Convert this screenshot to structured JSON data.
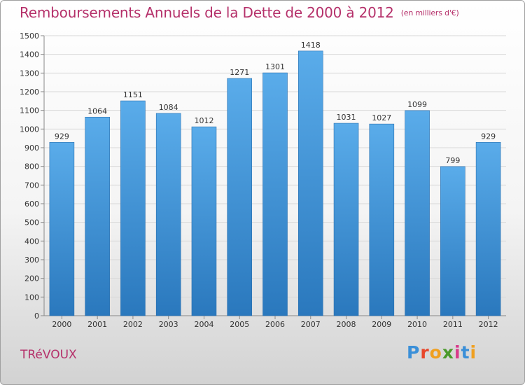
{
  "title": "Remboursements Annuels de la Dette de 2000 à 2012",
  "subtitle": "(en milliers d'€)",
  "city": "TRéVOUX",
  "logo": {
    "letters": [
      "P",
      "r",
      "o",
      "x",
      "i",
      "t",
      "i"
    ],
    "colors": [
      "#3a8fd8",
      "#e8462a",
      "#f0a020",
      "#4a9a2a",
      "#d83a8a",
      "#3a8fd8",
      "#f0a020"
    ]
  },
  "colors": {
    "bar": "#3d90d4",
    "title": "#b5306a",
    "grid": "#d8d8d8"
  },
  "chart_data": {
    "type": "bar",
    "categories": [
      "2000",
      "2001",
      "2002",
      "2003",
      "2004",
      "2005",
      "2006",
      "2007",
      "2008",
      "2009",
      "2010",
      "2011",
      "2012"
    ],
    "values": [
      929,
      1064,
      1151,
      1084,
      1012,
      1271,
      1301,
      1418,
      1031,
      1027,
      1099,
      799,
      929
    ],
    "ylim": [
      0,
      1500
    ],
    "yticks": [
      0,
      100,
      200,
      300,
      400,
      500,
      600,
      700,
      800,
      900,
      1000,
      1100,
      1200,
      1300,
      1400,
      1500
    ],
    "grid": true,
    "legend": "none"
  }
}
